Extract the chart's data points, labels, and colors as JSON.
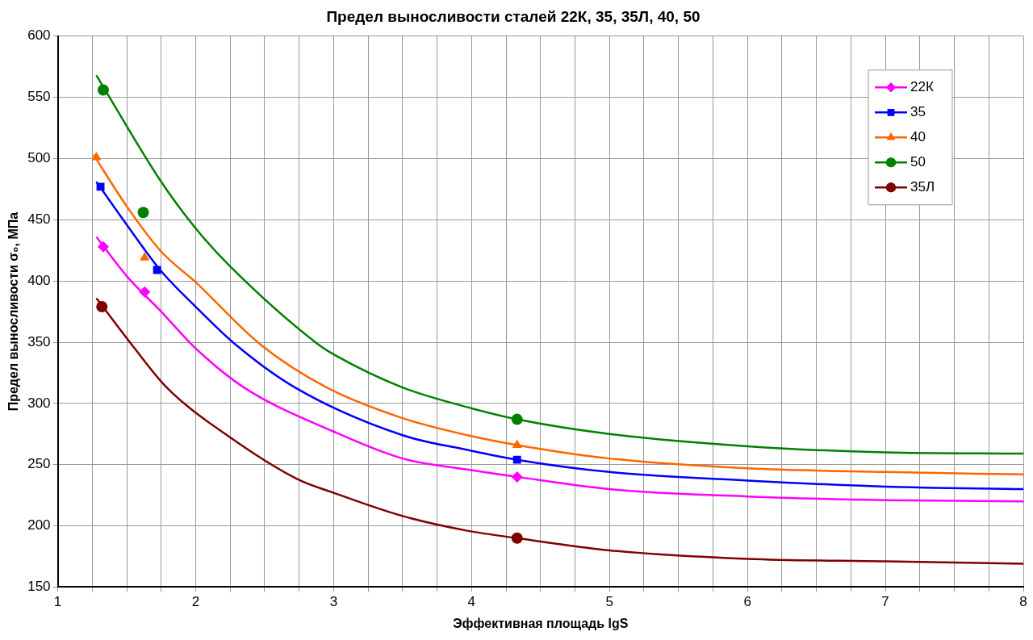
{
  "chart_data": {
    "type": "scatter",
    "title": "Предел выносливости сталей 22К, 35, 35Л, 40, 50",
    "xlabel": "Эффективная площадь lgS",
    "ylabel": "Предел выносливости σ₀, МПа",
    "xlim": [
      1,
      8
    ],
    "ylim": [
      150,
      600
    ],
    "xticks": [
      1,
      {
        "value": 1.25,
        "label": null
      },
      {
        "value": 1.5,
        "label": null
      },
      {
        "value": 1.75,
        "label": null
      },
      2,
      {
        "value": 2.25,
        "label": null
      },
      {
        "value": 2.5,
        "label": null
      },
      {
        "value": 2.75,
        "label": null
      },
      3,
      {
        "value": 3.25,
        "label": null
      },
      {
        "value": 3.5,
        "label": null
      },
      {
        "value": 3.75,
        "label": null
      },
      4,
      {
        "value": 4.25,
        "label": null
      },
      {
        "value": 4.5,
        "label": null
      },
      {
        "value": 4.75,
        "label": null
      },
      5,
      {
        "value": 5.25,
        "label": null
      },
      {
        "value": 5.5,
        "label": null
      },
      {
        "value": 5.75,
        "label": null
      },
      6,
      {
        "value": 6.25,
        "label": null
      },
      {
        "value": 6.5,
        "label": null
      },
      {
        "value": 6.75,
        "label": null
      },
      7,
      {
        "value": 7.25,
        "label": null
      },
      {
        "value": 7.5,
        "label": null
      },
      {
        "value": 7.75,
        "label": null
      },
      8
    ],
    "yticks": [
      150,
      200,
      250,
      300,
      350,
      400,
      450,
      500,
      550,
      600
    ],
    "grid": true,
    "legend": "top right",
    "series": [
      {
        "name": "22К",
        "marker": "diamond",
        "color": "#ff00ff",
        "x": [
          1.33,
          1.63,
          4.33
        ],
        "values": [
          428,
          391,
          240
        ]
      },
      {
        "name": "35",
        "marker": "square",
        "color": "#0000ff",
        "x": [
          1.31,
          1.72,
          4.33
        ],
        "values": [
          477,
          409,
          254
        ]
      },
      {
        "name": "40",
        "marker": "triangle",
        "color": "#ff6600",
        "x": [
          1.28,
          1.63,
          4.33
        ],
        "values": [
          501,
          419,
          266
        ]
      },
      {
        "name": "50",
        "marker": "circle",
        "color": "#008000",
        "x": [
          1.33,
          1.62,
          4.33
        ],
        "values": [
          556,
          456,
          287
        ]
      },
      {
        "name": "35Л",
        "marker": "circle",
        "color": "#800000",
        "x": [
          1.32,
          4.33
        ],
        "values": [
          379,
          190
        ]
      },
      {
        "type": "line",
        "marker": "none",
        "color": "#ff00ff",
        "x": [
          1.28,
          1.5,
          1.75,
          1.99,
          2.35,
          3,
          3.5,
          3.97,
          4.33,
          5,
          6,
          7,
          8
        ],
        "values": [
          436,
          404,
          375,
          346,
          313,
          277,
          255,
          246,
          240,
          230,
          224,
          221,
          220
        ]
      },
      {
        "type": "line",
        "marker": "none",
        "color": "#0000ff",
        "x": [
          1.28,
          1.5,
          1.75,
          2,
          2.29,
          2.72,
          3.5,
          3.97,
          4.33,
          5,
          6,
          7,
          8
        ],
        "values": [
          481,
          446,
          408,
          379,
          348,
          313,
          274,
          262,
          254,
          244,
          237,
          232,
          230
        ]
      },
      {
        "type": "line",
        "marker": "none",
        "color": "#ff6600",
        "x": [
          1.26,
          1.5,
          1.75,
          2,
          2.47,
          2.95,
          3.5,
          3.97,
          4.33,
          5,
          6,
          7,
          8
        ],
        "values": [
          503,
          461,
          424,
          399,
          348,
          313,
          288,
          274,
          266,
          255,
          247,
          244,
          242
        ]
      },
      {
        "type": "line",
        "marker": "none",
        "color": "#008000",
        "x": [
          1.28,
          1.75,
          2,
          2.24,
          2.89,
          3,
          3.5,
          4,
          4.33,
          5,
          6,
          7,
          8
        ],
        "values": [
          568,
          481,
          443,
          413,
          348,
          340,
          313,
          296,
          287,
          275,
          265,
          260,
          259
        ]
      },
      {
        "type": "line",
        "marker": "none",
        "color": "#800000",
        "x": [
          1.28,
          1.55,
          1.79,
          2.24,
          2.74,
          3,
          3.5,
          3.97,
          4.33,
          5,
          6,
          7,
          8
        ],
        "values": [
          386,
          346,
          313,
          273,
          238,
          227,
          208,
          196,
          190,
          180,
          173,
          171,
          169
        ]
      }
    ]
  }
}
